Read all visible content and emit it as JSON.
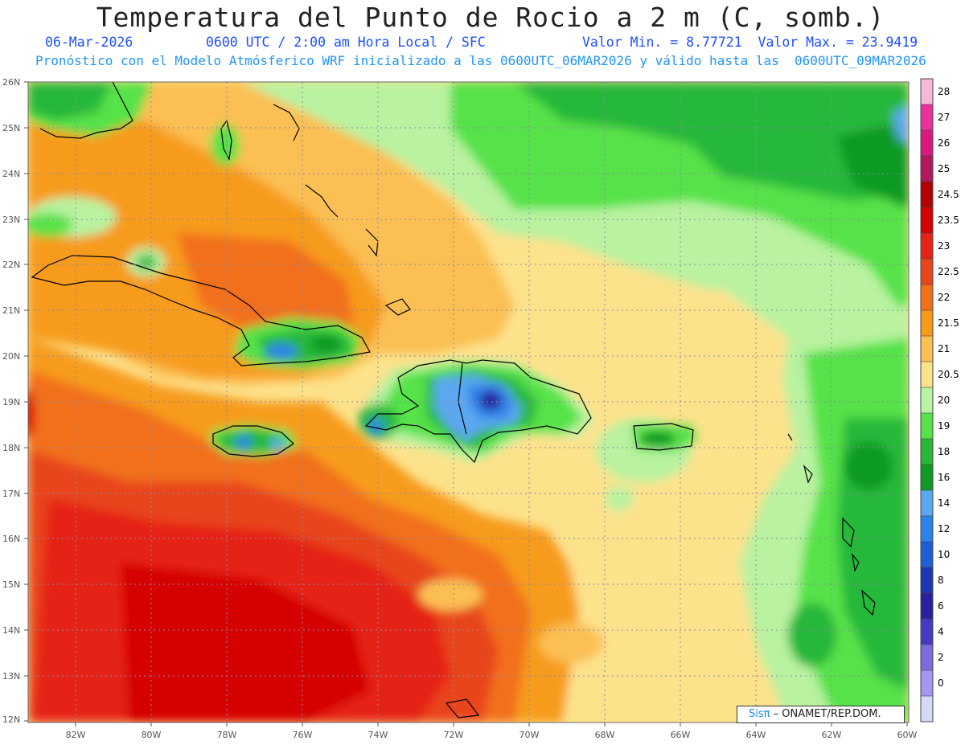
{
  "header": {
    "title": "Temperatura del Punto de Rocio a 2 m (C, somb.)",
    "date": "06-Mar-2026",
    "time": "0600 UTC / 2:00 am Hora Local / SFC",
    "minmax": "Valor Min. = 8.77721  Valor Max. = 23.9419",
    "forecast": "Pronóstico con el Modelo Atmósferico WRF inicializado a las 0600UTC_06MAR2026 y válido hasta las  0600UTC_09MAR2026"
  },
  "axes": {
    "lat_labels": [
      "26N",
      "25N",
      "24N",
      "23N",
      "22N",
      "21N",
      "20N",
      "19N",
      "18N",
      "17N",
      "16N",
      "15N",
      "14N",
      "13N",
      "12N"
    ],
    "lon_labels": [
      "82W",
      "80W",
      "78W",
      "76W",
      "74W",
      "72W",
      "70W",
      "68W",
      "66W",
      "64W",
      "62W",
      "60W"
    ]
  },
  "legend": {
    "labels": [
      "28",
      "27",
      "26",
      "25",
      "24.5",
      "23.5",
      "23",
      "22.5",
      "22",
      "21.5",
      "21",
      "20.5",
      "20",
      "19",
      "18",
      "16",
      "14",
      "12",
      "10",
      "8",
      "6",
      "4",
      "2",
      "0"
    ],
    "colors": [
      "#f4b8d8",
      "#ec2f9c",
      "#d81b7a",
      "#b2185c",
      "#b30000",
      "#d50000",
      "#e52316",
      "#e8451a",
      "#f2701a",
      "#f79b1a",
      "#fbbf52",
      "#fde28c",
      "#b9f2a0",
      "#57e24a",
      "#27b83a",
      "#0e9a23",
      "#5ba8f0",
      "#2d83e8",
      "#1e5fd6",
      "#1d36b4",
      "#2a1f9e",
      "#4739c0",
      "#7b6ce0",
      "#a497f2",
      "#d6d8f6"
    ],
    "color_order": "top-to-bottom"
  },
  "credit": {
    "sis": "Sisπ",
    "org": " – ONAMET/REP.DOM."
  }
}
